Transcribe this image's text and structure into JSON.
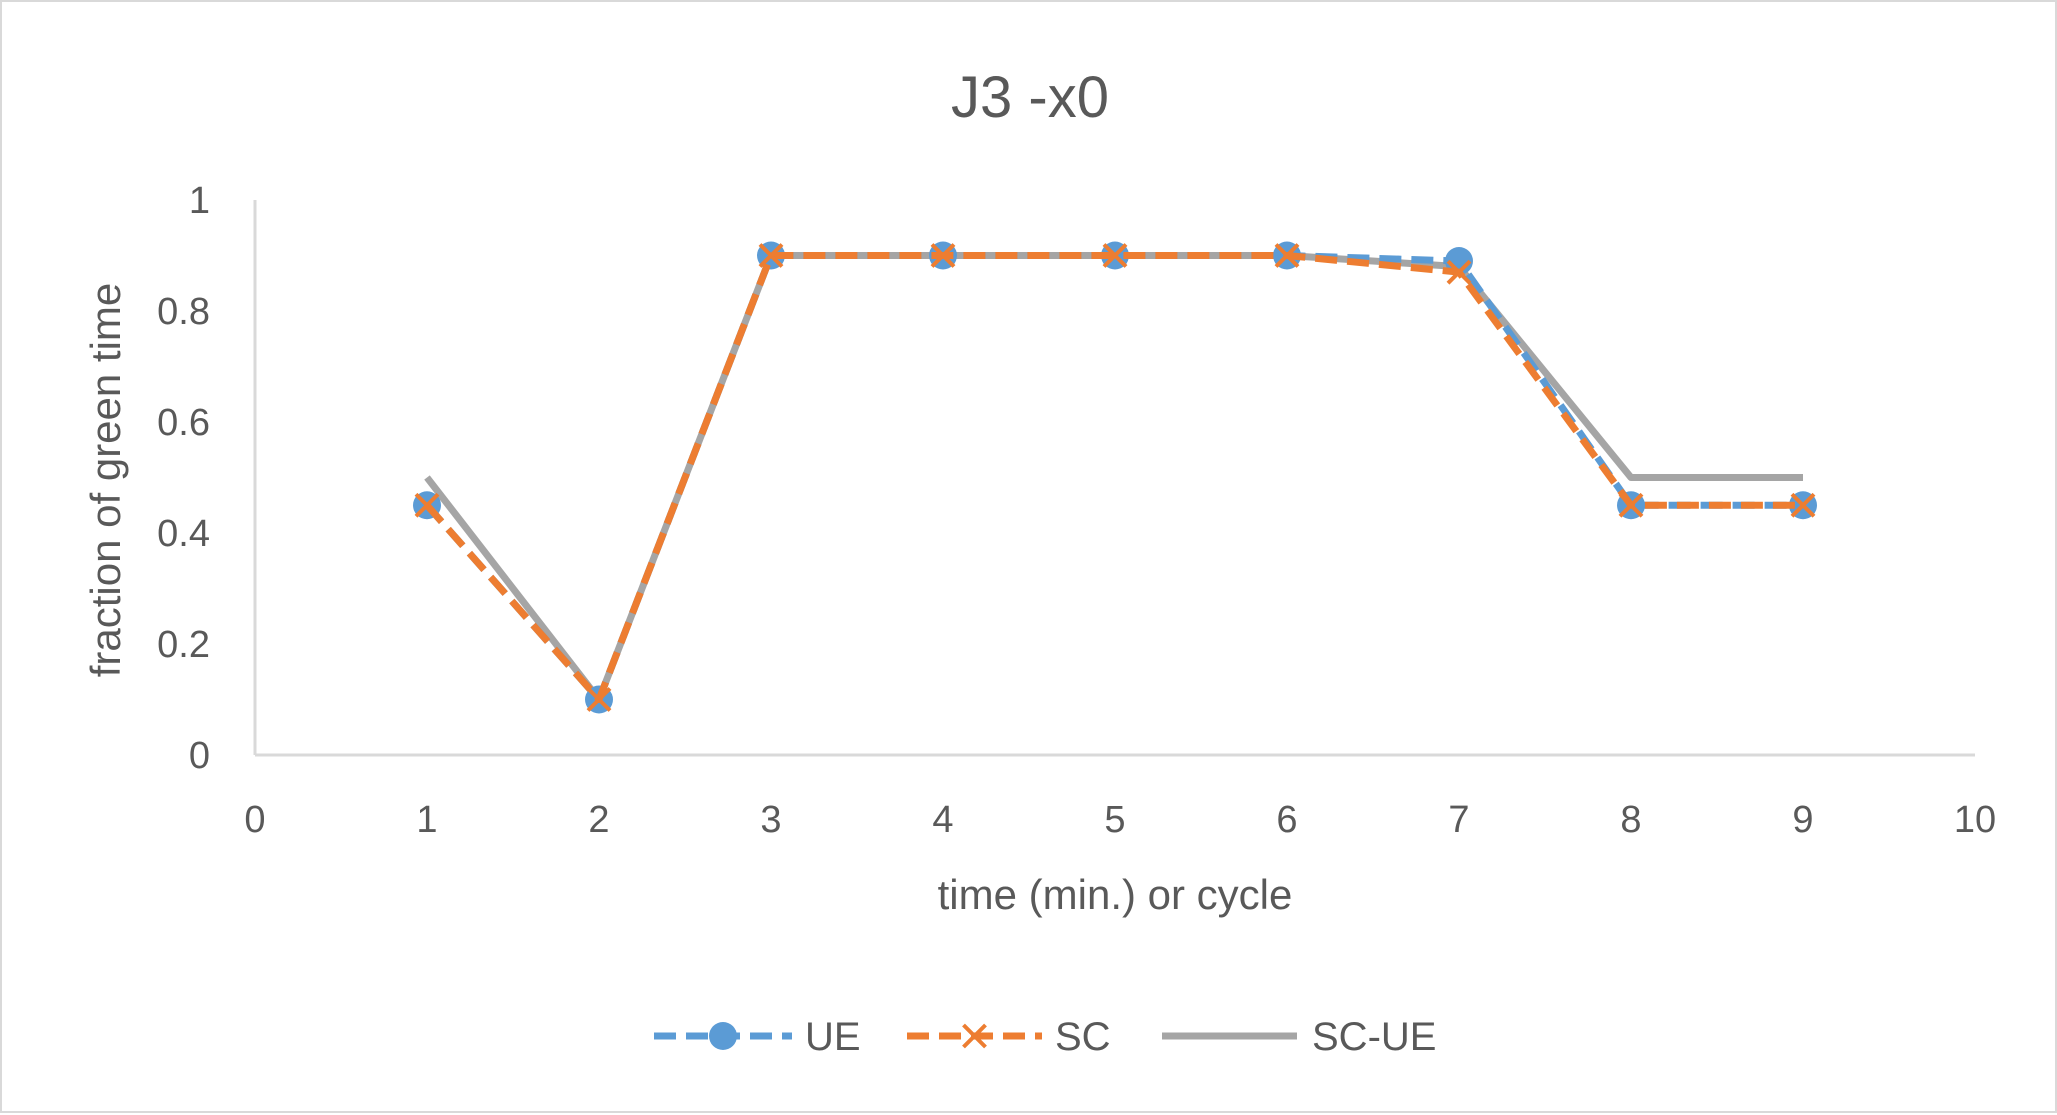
{
  "chart_data": {
    "type": "line",
    "title": "J3 -x0",
    "xlabel": "time (min.) or cycle",
    "ylabel": "fraction of green time",
    "xlim": [
      0,
      10
    ],
    "ylim": [
      0,
      1
    ],
    "xticks": [
      "0",
      "1",
      "2",
      "3",
      "4",
      "5",
      "6",
      "7",
      "8",
      "9",
      "10"
    ],
    "yticks": [
      "0",
      "0.2",
      "0.4",
      "0.6",
      "0.8",
      "1"
    ],
    "grid": false,
    "legend_position": "bottom",
    "series": [
      {
        "name": "UE",
        "color": "#5b9bd5",
        "marker": "circle",
        "dash": "dashed",
        "x": [
          1,
          2,
          3,
          4,
          5,
          6,
          7,
          8,
          9
        ],
        "y": [
          0.45,
          0.1,
          0.9,
          0.9,
          0.9,
          0.9,
          0.89,
          0.45,
          0.45
        ]
      },
      {
        "name": "SC",
        "color": "#ed7d31",
        "marker": "x",
        "dash": "dashed",
        "x": [
          1,
          2,
          3,
          4,
          5,
          6,
          7,
          8,
          9
        ],
        "y": [
          0.45,
          0.1,
          0.9,
          0.9,
          0.9,
          0.9,
          0.87,
          0.45,
          0.45
        ]
      },
      {
        "name": "SC-UE",
        "color": "#a5a5a5",
        "marker": "none",
        "dash": "solid",
        "x": [
          1,
          2,
          3,
          4,
          5,
          6,
          7,
          8,
          9
        ],
        "y": [
          0.5,
          0.1,
          0.9,
          0.9,
          0.9,
          0.9,
          0.88,
          0.5,
          0.5
        ]
      }
    ]
  }
}
